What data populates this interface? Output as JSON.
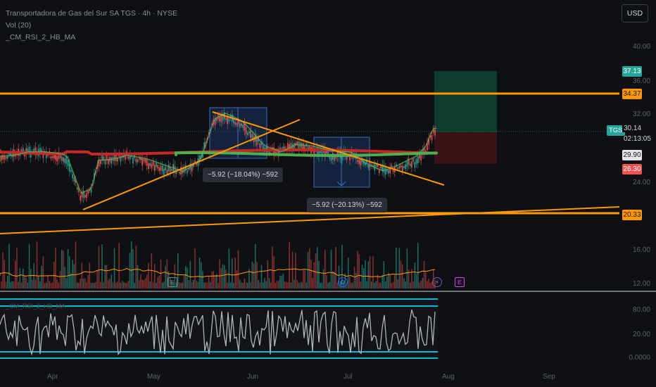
{
  "header": {
    "title": "Transportadora de Gas del Sur SA TGS · 4h · NYSE",
    "vol_label": "Vol (20)",
    "indicator_label": "_CM_RSI_2_HB_MA"
  },
  "currency_button": "USD",
  "symbol_tag": "TGS",
  "price_axis": [
    "40.00",
    "36.00",
    "32.00",
    "24.00",
    "16.00",
    "12.00"
  ],
  "price_tags": {
    "target": "37.13",
    "resistance": "34.37",
    "current": "30.14",
    "countdown": "02:13:05",
    "entry": "29.90",
    "stop": "26.30",
    "support": "20.33"
  },
  "rsi_axis": [
    "80.00",
    "20.00",
    "0.0000"
  ],
  "measure_tooltips": [
    "−5.92 (−18.04%) −592",
    "−5.92 (−20.13%) −592"
  ],
  "x_axis": [
    "Apr",
    "May",
    "Jun",
    "Jul",
    "Aug",
    "Sep"
  ],
  "event_badges": [
    "E",
    "D",
    "E"
  ],
  "colors": {
    "background": "#0e1013",
    "orange": "#ff9800",
    "green_ma": "#4caf50",
    "red_ma": "#c62828",
    "up": "#26a69a",
    "down": "#ef5350",
    "rsi_band": "#00bcd4",
    "target_zone": "#0d3b2e",
    "stop_zone": "#3b1218"
  }
}
